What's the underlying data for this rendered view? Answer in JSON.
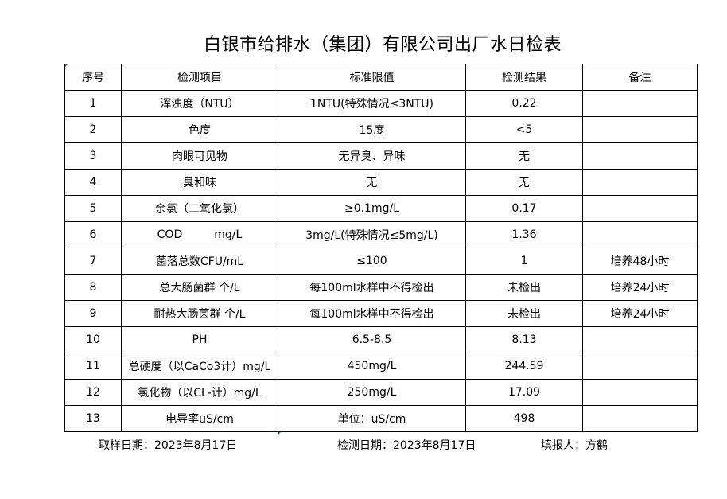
{
  "title": "白银市给排水（集团）有限公司出厂水日检表",
  "headers": [
    "序号",
    "检测项目",
    "标准限值",
    "检测结果",
    "备注"
  ],
  "rows": [
    [
      "1",
      "浑浊度（NTU）",
      "1NTU(特殊情况≤3NTU)",
      "0.22",
      ""
    ],
    [
      "2",
      "色度",
      "15度",
      "<5",
      ""
    ],
    [
      "3",
      "肉眼可见物",
      "无异臭、异味",
      "无",
      ""
    ],
    [
      "4",
      "臭和味",
      "无",
      "无",
      ""
    ],
    [
      "5",
      "余氯（二氧化氯）",
      "≥0.1mg/L",
      "0.17",
      ""
    ],
    [
      "6",
      "COD         mg/L",
      "3mg/L(特殊情况≤5mg/L)",
      "1.36",
      ""
    ],
    [
      "7",
      "菌落总数CFU/mL",
      "≤100",
      "1",
      "培养48小时"
    ],
    [
      "8",
      "总大肠菌群 个/L",
      "每100ml水样中不得检出",
      "未检出",
      "培养24小时"
    ],
    [
      "9",
      "耐热大肠菌群 个/L",
      "每100ml水样中不得检出",
      "未检出",
      "培养24小时"
    ],
    [
      "10",
      "PH",
      "6.5-8.5",
      "8.13",
      ""
    ],
    [
      "11",
      "总硬度（以CaCo3计）mg/L",
      "450mg/L",
      "244.59",
      ""
    ],
    [
      "12",
      "氯化物（以CL-计）mg/L",
      "250mg/L",
      "17.09",
      ""
    ],
    [
      "13",
      "电导率uS/cm",
      "单位：uS/cm",
      "498",
      ""
    ]
  ],
  "footer": {
    "sample_date": "取样日期：2023年8月17日",
    "test_date": "检测日期：2023年8月17日",
    "reporter": "填报人：方鹤"
  }
}
